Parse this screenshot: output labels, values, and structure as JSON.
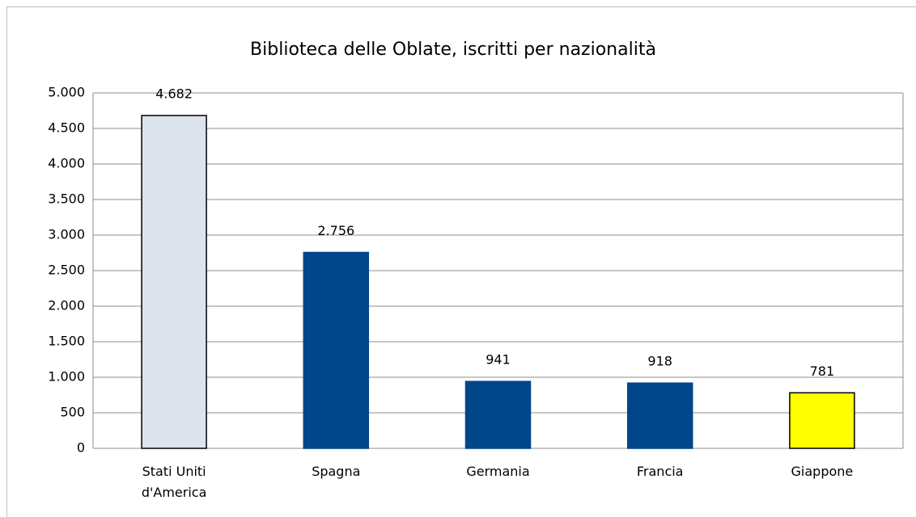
{
  "chart_data": {
    "type": "bar",
    "title": "Biblioteca delle Oblate, iscritti per nazionalità",
    "categories": [
      "Stati Uniti d'America",
      "Spagna",
      "Germania",
      "Francia",
      "Giappone"
    ],
    "values": [
      4682,
      2756,
      941,
      918,
      781
    ],
    "value_labels": [
      "4.682",
      "2.756",
      "941",
      "918",
      "781"
    ],
    "colors": [
      "#dce3ed",
      "#00468b",
      "#00468b",
      "#00468b",
      "#ffff00"
    ],
    "edgecolors": [
      "#000000",
      "#00468b",
      "#00468b",
      "#00468b",
      "#000000"
    ],
    "ylim": [
      0,
      5000
    ],
    "yticks": [
      0,
      {
        "value": 500,
        "label": "500"
      },
      {
        "value": 1000,
        "label": "1.000"
      },
      {
        "value": 1500,
        "label": "1.500"
      },
      {
        "value": 2000,
        "label": "2.000"
      },
      {
        "value": 2500,
        "label": "2.500"
      },
      {
        "value": 3000,
        "label": "3.000"
      },
      {
        "value": 3500,
        "label": "3.500"
      },
      {
        "value": 4000,
        "label": "4.000"
      },
      {
        "value": 4500,
        "label": "4.500"
      },
      {
        "value": 5000,
        "label": "5.000"
      }
    ],
    "grid": true
  }
}
